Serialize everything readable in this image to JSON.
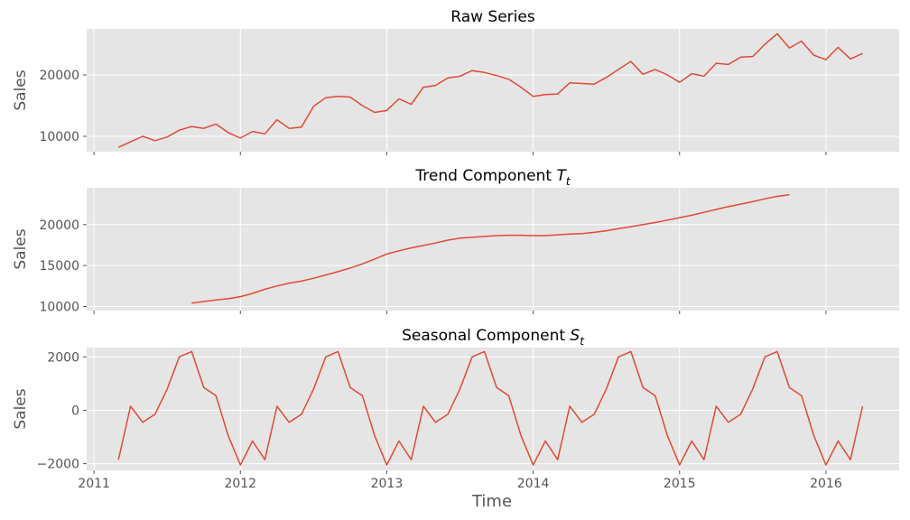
{
  "figure": {
    "xlabel": "Time",
    "x_ticks": [
      "2011",
      "2012",
      "2013",
      "2014",
      "2015",
      "2016"
    ],
    "line_color": "#E24A33",
    "background_color": "#E5E5E5",
    "grid_color": "#FFFFFF"
  },
  "chart_data": [
    {
      "type": "line",
      "title": "Raw Series",
      "ylabel": "Sales",
      "yticks": [
        "10000",
        "20000"
      ],
      "ylim": [
        7500,
        27500
      ],
      "grid": true,
      "series": [
        {
          "x": [
            2011.167,
            2011.25,
            2011.333,
            2011.417,
            2011.5,
            2011.583,
            2011.667,
            2011.75,
            2011.833,
            2011.917,
            2012.0,
            2012.083,
            2012.167,
            2012.25,
            2012.333,
            2012.417,
            2012.5,
            2012.583,
            2012.667,
            2012.75,
            2012.833,
            2012.917,
            2013.0,
            2013.083,
            2013.167,
            2013.25,
            2013.333,
            2013.417,
            2013.5,
            2013.583,
            2013.667,
            2013.75,
            2013.833,
            2013.917,
            2014.0,
            2014.083,
            2014.167,
            2014.25,
            2014.333,
            2014.417,
            2014.5,
            2014.583,
            2014.667,
            2014.75,
            2014.833,
            2014.917,
            2015.0,
            2015.083,
            2015.167,
            2015.25,
            2015.333,
            2015.417,
            2015.5,
            2015.583,
            2015.667,
            2015.75,
            2015.833,
            2015.917,
            2016.0,
            2016.083,
            2016.167,
            2016.25
          ],
          "values": [
            8200,
            9100,
            10000,
            9300,
            9900,
            11000,
            11600,
            11300,
            12000,
            10600,
            9700,
            10800,
            10400,
            12700,
            11300,
            11500,
            14900,
            16300,
            16500,
            16400,
            15000,
            13900,
            14200,
            16100,
            15200,
            18000,
            18300,
            19500,
            19800,
            20700,
            20400,
            19900,
            19300,
            18000,
            16500,
            16800,
            16900,
            18700,
            18600,
            18500,
            19600,
            20900,
            22200,
            20100,
            20900,
            20000,
            18800,
            20200,
            19800,
            21900,
            21700,
            22900,
            23000,
            25000,
            26700,
            24400,
            25500,
            23200,
            22500,
            24500,
            22600,
            23500
          ]
        }
      ]
    },
    {
      "type": "line",
      "title": "Trend Component",
      "title_symbol": "T",
      "title_subscript": "t",
      "ylabel": "Sales",
      "yticks": [
        "10000",
        "15000",
        "20000"
      ],
      "ylim": [
        9500,
        24500
      ],
      "grid": true,
      "series": [
        {
          "x": [
            2011.667,
            2011.75,
            2011.833,
            2011.917,
            2012.0,
            2012.083,
            2012.167,
            2012.25,
            2012.333,
            2012.417,
            2012.5,
            2012.583,
            2012.667,
            2012.75,
            2012.833,
            2012.917,
            2013.0,
            2013.083,
            2013.167,
            2013.25,
            2013.333,
            2013.417,
            2013.5,
            2013.583,
            2013.667,
            2013.75,
            2013.833,
            2013.917,
            2014.0,
            2014.083,
            2014.167,
            2014.25,
            2014.333,
            2014.417,
            2014.5,
            2014.583,
            2014.667,
            2014.75,
            2014.833,
            2014.917,
            2015.0,
            2015.083,
            2015.167,
            2015.25,
            2015.333,
            2015.417,
            2015.5,
            2015.583,
            2015.667,
            2015.75
          ],
          "values": [
            10400,
            10600,
            10800,
            10950,
            11200,
            11600,
            12100,
            12500,
            12850,
            13100,
            13450,
            13850,
            14250,
            14700,
            15200,
            15800,
            16400,
            16800,
            17150,
            17450,
            17750,
            18100,
            18350,
            18450,
            18550,
            18650,
            18700,
            18700,
            18650,
            18650,
            18750,
            18850,
            18900,
            19050,
            19250,
            19500,
            19750,
            20000,
            20250,
            20550,
            20850,
            21150,
            21500,
            21850,
            22200,
            22500,
            22800,
            23150,
            23450,
            23650
          ]
        }
      ]
    },
    {
      "type": "line",
      "title": "Seasonal Component",
      "title_symbol": "S",
      "title_subscript": "t",
      "ylabel": "Sales",
      "yticks": [
        "−2000",
        "0",
        "2000"
      ],
      "ylim": [
        -2250,
        2350
      ],
      "grid": true,
      "series": [
        {
          "x": [
            2011.167,
            2011.25,
            2011.333,
            2011.417,
            2011.5,
            2011.583,
            2011.667,
            2011.75,
            2011.833,
            2011.917,
            2012.0,
            2012.083,
            2012.167,
            2012.25,
            2012.333,
            2012.417,
            2012.5,
            2012.583,
            2012.667,
            2012.75,
            2012.833,
            2012.917,
            2013.0,
            2013.083,
            2013.167,
            2013.25,
            2013.333,
            2013.417,
            2013.5,
            2013.583,
            2013.667,
            2013.75,
            2013.833,
            2013.917,
            2014.0,
            2014.083,
            2014.167,
            2014.25,
            2014.333,
            2014.417,
            2014.5,
            2014.583,
            2014.667,
            2014.75,
            2014.833,
            2014.917,
            2015.0,
            2015.083,
            2015.167,
            2015.25,
            2015.333,
            2015.417,
            2015.5,
            2015.583,
            2015.667,
            2015.75,
            2015.833,
            2015.917,
            2016.0,
            2016.083,
            2016.167,
            2016.25
          ],
          "values": [
            -1850,
            150,
            -450,
            -150,
            800,
            2000,
            2200,
            850,
            550,
            -950,
            -2050,
            -1150,
            -1850,
            150,
            -450,
            -150,
            800,
            2000,
            2200,
            850,
            550,
            -950,
            -2050,
            -1150,
            -1850,
            150,
            -450,
            -150,
            800,
            2000,
            2200,
            850,
            550,
            -950,
            -2050,
            -1150,
            -1850,
            150,
            -450,
            -150,
            800,
            2000,
            2200,
            850,
            550,
            -950,
            -2050,
            -1150,
            -1850,
            150,
            -450,
            -150,
            800,
            2000,
            2200,
            850,
            550,
            -950,
            -2050,
            -1150,
            -1850,
            150
          ]
        }
      ]
    }
  ]
}
